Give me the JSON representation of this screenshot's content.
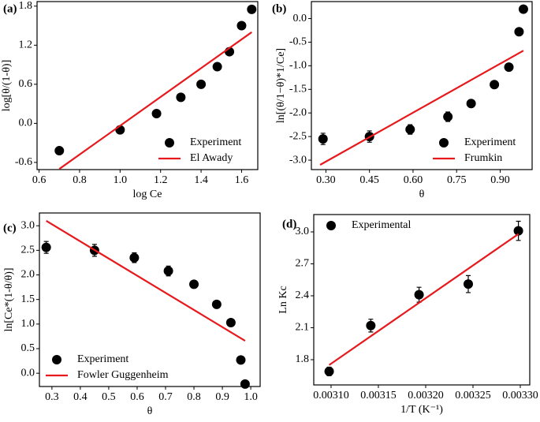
{
  "chart_data": [
    {
      "type": "scatter",
      "panel": "(a)",
      "xlabel": "log Ce",
      "ylabel": "log[θ/(1-θ)]",
      "xlim": [
        0.59,
        1.68
      ],
      "ylim": [
        -0.71,
        1.87
      ],
      "xticks": [
        0.6,
        0.8,
        {
          "value": 1.0,
          "label": "1.0"
        },
        1.2,
        1.4,
        1.6
      ],
      "yticks": [
        -0.6,
        {
          "value": 0.0,
          "label": "0.0"
        },
        0.6,
        1.2,
        1.8
      ],
      "legend": "lower right",
      "series": [
        {
          "name": "Experiment",
          "type": "scatter",
          "color": "#000000",
          "x": [
            0.7,
            1.0,
            1.18,
            1.3,
            1.4,
            1.48,
            1.54,
            1.6,
            1.65
          ],
          "values": [
            -0.42,
            -0.1,
            0.15,
            0.4,
            0.6,
            0.87,
            1.1,
            1.5,
            1.75
          ]
        },
        {
          "name": "El Awady",
          "type": "line",
          "color": "#e8191c",
          "x": [
            0.7,
            1.65
          ],
          "values": [
            -0.7,
            1.4
          ]
        }
      ]
    },
    {
      "type": "scatter",
      "panel": "(b)",
      "xlabel": "θ",
      "ylabel": "ln[(θ/1−θ)*1/Ce]",
      "xlim": [
        0.25,
        1.01
      ],
      "ylim": [
        -3.2,
        0.36
      ],
      "xticks": [
        {
          "value": 0.3,
          "label": "0.30"
        },
        0.45,
        {
          "value": 0.6,
          "label": "0.60"
        },
        0.75,
        {
          "value": 0.9,
          "label": "0.90"
        }
      ],
      "yticks": [
        {
          "value": 0.0,
          "label": "0.0"
        },
        -0.5,
        {
          "value": -1.0,
          "label": "-1.0"
        },
        -1.5,
        {
          "value": -2.0,
          "label": "-2.0"
        },
        -2.5,
        {
          "value": -3.0,
          "label": "-3.0"
        }
      ],
      "legend": "lower right",
      "series": [
        {
          "name": "Experiment",
          "type": "scatter",
          "color": "#000000",
          "x": [
            0.29,
            0.45,
            0.59,
            0.72,
            0.8,
            0.88,
            0.93,
            0.965,
            0.98
          ],
          "values": [
            -2.55,
            -2.5,
            -2.35,
            -2.08,
            -1.8,
            -1.4,
            -1.03,
            -0.28,
            0.2
          ],
          "errors": [
            0.12,
            0.12,
            0.1,
            0.1,
            0.07,
            0.05,
            0.05,
            0.05,
            0.05
          ]
        },
        {
          "name": "Frumkin",
          "type": "line",
          "color": "#e8191c",
          "x": [
            0.28,
            0.98
          ],
          "values": [
            -3.1,
            -0.68
          ]
        }
      ]
    },
    {
      "type": "scatter",
      "panel": "(c)",
      "xlabel": "θ",
      "ylabel": "ln[Ce*(1-θ/θ)]",
      "xlim": [
        0.256,
        1.033
      ],
      "ylim": [
        -0.27,
        3.26
      ],
      "xticks": [
        0.3,
        0.4,
        0.5,
        0.6,
        0.7,
        0.8,
        0.9,
        {
          "value": 1.0,
          "label": "1.0"
        }
      ],
      "yticks": [
        {
          "value": 0.0,
          "label": "0.0"
        },
        0.5,
        {
          "value": 1.0,
          "label": "1.0"
        },
        1.5,
        {
          "value": 2.0,
          "label": "2.0"
        },
        2.5,
        {
          "value": 3.0,
          "label": "3.0"
        }
      ],
      "legend": "lower left",
      "series": [
        {
          "name": "Experiment",
          "type": "scatter",
          "color": "#000000",
          "x": [
            0.28,
            0.45,
            0.59,
            0.71,
            0.8,
            0.88,
            0.93,
            0.965,
            0.98
          ],
          "values": [
            2.56,
            2.5,
            2.35,
            2.08,
            1.81,
            1.4,
            1.03,
            0.27,
            -0.22
          ],
          "errors": [
            0.12,
            0.12,
            0.1,
            0.1,
            0.07,
            0.05,
            0.05,
            0.05,
            0.05
          ]
        },
        {
          "name": "Fowler Guggenheim",
          "type": "line",
          "color": "#e8191c",
          "x": [
            0.28,
            0.98
          ],
          "values": [
            3.1,
            0.66
          ]
        }
      ]
    },
    {
      "type": "scatter",
      "panel": "(d)",
      "xlabel": "1/T (K⁻¹)",
      "ylabel": "Ln Kc",
      "xlim": [
        0.0030817,
        0.00331
      ],
      "ylim": [
        1.563,
        3.163
      ],
      "xticks": [
        {
          "value": 0.0031,
          "label": "0.00310"
        },
        {
          "value": 0.00315,
          "label": "0.00315"
        },
        {
          "value": 0.0032,
          "label": "0.00320"
        },
        {
          "value": 0.00325,
          "label": "0.00325"
        },
        {
          "value": 0.0033,
          "label": "0.00330"
        }
      ],
      "yticks": [
        1.8,
        2.1,
        2.4,
        2.7,
        {
          "value": 3.0,
          "label": "3.0"
        }
      ],
      "legend": "upper left",
      "series": [
        {
          "name": "Experimental",
          "type": "scatter",
          "color": "#000000",
          "x": [
            0.003098,
            0.003142,
            0.003193,
            0.003245,
            0.003298
          ],
          "values": [
            1.69,
            2.12,
            2.41,
            2.51,
            3.01
          ],
          "errors": [
            0.04,
            0.06,
            0.07,
            0.08,
            0.09
          ]
        },
        {
          "type": "line",
          "color": "#e8191c",
          "x": [
            0.003098,
            0.003298
          ],
          "values": [
            1.75,
            2.98
          ]
        }
      ]
    }
  ]
}
